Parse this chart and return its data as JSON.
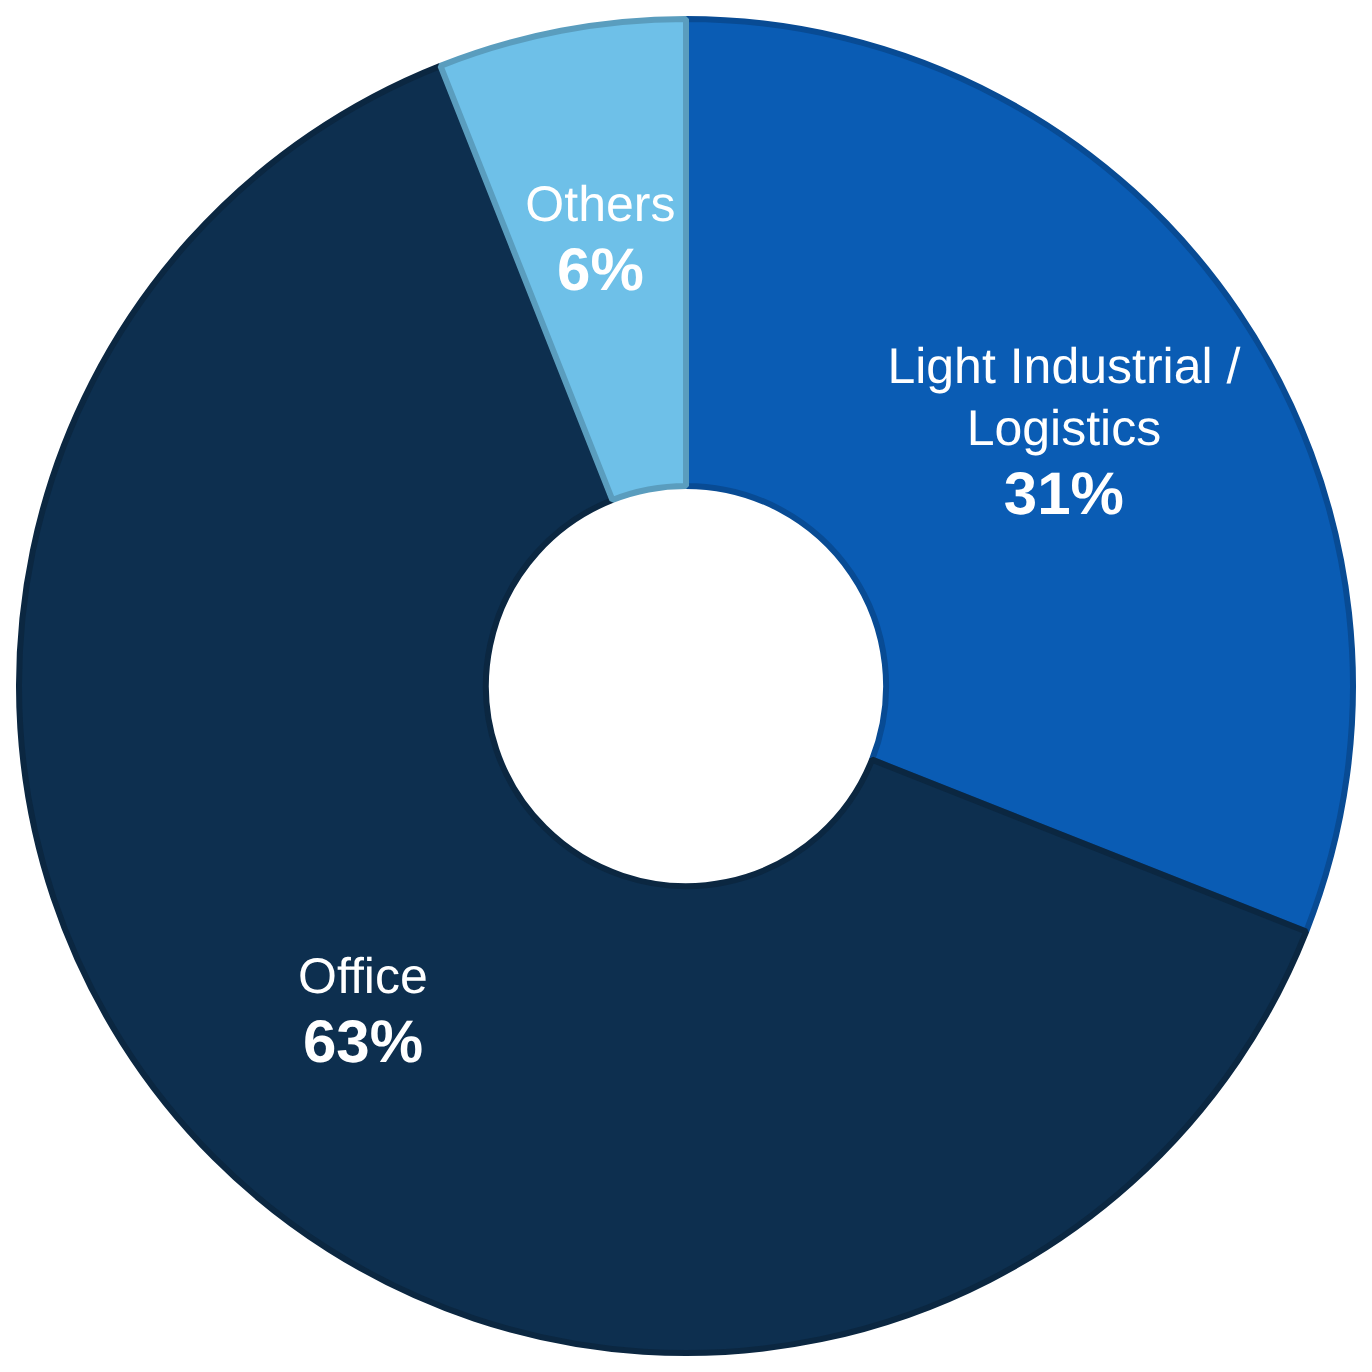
{
  "chart_data": {
    "type": "donut",
    "categories": [
      "Light Industrial / Logistics",
      "Office",
      "Others"
    ],
    "values": [
      31,
      63,
      6
    ],
    "colors": [
      "#0a5cb4",
      "#0d2f4f",
      "#6ec0e8"
    ],
    "value_labels": [
      "31%",
      "63%",
      "6%"
    ],
    "legend": false
  }
}
